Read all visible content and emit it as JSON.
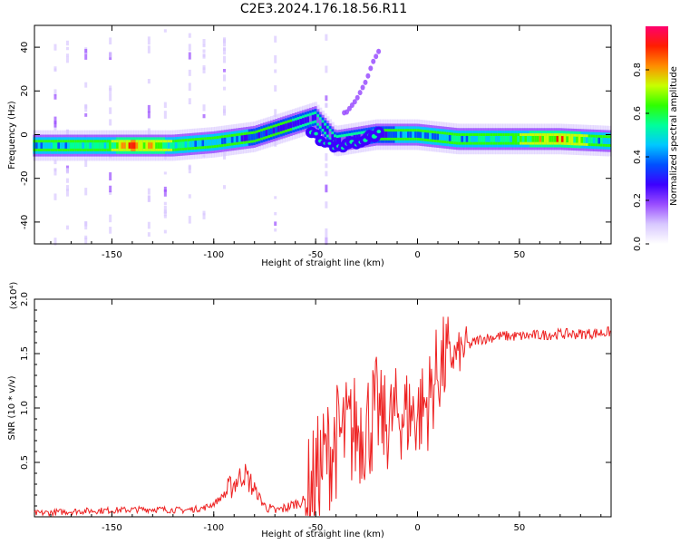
{
  "title": "C2E3.2024.176.18.56.R11",
  "chart_data": [
    {
      "type": "heatmap",
      "name": "spectrogram",
      "xlabel": "Height of straight line (km)",
      "ylabel": "Frequency (Hz)",
      "xlim": [
        -188,
        95
      ],
      "ylim": [
        -50,
        50
      ],
      "xticks": [
        -150,
        -100,
        -50,
        0,
        50
      ],
      "yticks": [
        -40,
        -20,
        0,
        20,
        40
      ],
      "colorbar": {
        "label": "Normalized spectral amplitude",
        "range": [
          0,
          1
        ],
        "ticks": [
          "0.0",
          "0.2",
          "0.4",
          "0.6",
          "0.8"
        ],
        "colors": [
          "#ffffff",
          "#d8c8ff",
          "#9a4dff",
          "#3c00ff",
          "#0050ff",
          "#00c8ff",
          "#00ff9a",
          "#2fff00",
          "#c8ff00",
          "#ff8c00",
          "#ff1e00",
          "#ff006e"
        ]
      },
      "band": [
        {
          "x": -188,
          "f": -5,
          "amp": 0.45
        },
        {
          "x": -150,
          "f": -5,
          "amp": 0.6
        },
        {
          "x": -140,
          "f": -5,
          "amp": 0.95
        },
        {
          "x": -120,
          "f": -5,
          "amp": 0.6
        },
        {
          "x": -100,
          "f": -3.5,
          "amp": 0.45
        },
        {
          "x": -80,
          "f": -1,
          "amp": 0.35
        },
        {
          "x": -60,
          "f": 5,
          "amp": 0.3
        },
        {
          "x": -50,
          "f": 8,
          "amp": 0.25
        },
        {
          "x": -40,
          "f": -3,
          "amp": 0.25
        },
        {
          "x": -20,
          "f": 0,
          "amp": 0.3
        },
        {
          "x": 0,
          "f": 0,
          "amp": 0.45
        },
        {
          "x": 20,
          "f": -2,
          "amp": 0.5
        },
        {
          "x": 50,
          "f": -2,
          "amp": 0.6
        },
        {
          "x": 70,
          "f": -2,
          "amp": 0.85
        },
        {
          "x": 95,
          "f": -3,
          "amp": 0.4
        }
      ],
      "lower_branch": [
        {
          "x": -50,
          "f": 0
        },
        {
          "x": -40,
          "f": -6
        },
        {
          "x": -30,
          "f": -4
        },
        {
          "x": -20,
          "f": 0
        }
      ],
      "upper_branch": [
        {
          "x": -35,
          "f": 10
        },
        {
          "x": -30,
          "f": 16
        },
        {
          "x": -25,
          "f": 25
        },
        {
          "x": -22,
          "f": 33
        },
        {
          "x": -18,
          "f": 40
        }
      ]
    },
    {
      "type": "line",
      "name": "snr",
      "xlabel": "Height of straight line (km)",
      "ylabel": "SNR (10 * v/v)",
      "yscale_label": "(x10⁴)",
      "xlim": [
        -188,
        95
      ],
      "ylim": [
        0,
        2.0
      ],
      "xticks": [
        -150,
        -100,
        -50,
        0,
        50
      ],
      "yticks": [
        "0.5",
        "1.0",
        "1.5",
        "2.0"
      ],
      "color": "#ee2222",
      "series": [
        {
          "x": [
            -188,
            -170,
            -150,
            -130,
            -115,
            -105,
            -100,
            -95,
            -88,
            -85,
            -80,
            -75,
            -70,
            -65,
            -60,
            -55,
            -50,
            -45,
            -40,
            -35,
            -30,
            -25,
            -20,
            -15,
            -10,
            -5,
            0,
            5,
            10,
            15,
            20,
            25,
            30,
            40,
            50,
            60,
            70,
            80,
            90,
            95
          ],
          "values": [
            0.03,
            0.05,
            0.06,
            0.07,
            0.06,
            0.08,
            0.12,
            0.2,
            0.35,
            0.4,
            0.25,
            0.1,
            0.05,
            0.08,
            0.12,
            0.15,
            0.35,
            0.55,
            0.7,
            0.75,
            0.8,
            0.85,
            0.95,
            0.85,
            0.95,
            0.95,
            0.95,
            1.05,
            1.35,
            1.45,
            1.5,
            1.57,
            1.63,
            1.66,
            1.66,
            1.67,
            1.68,
            1.68,
            1.69,
            1.7
          ]
        }
      ]
    }
  ]
}
